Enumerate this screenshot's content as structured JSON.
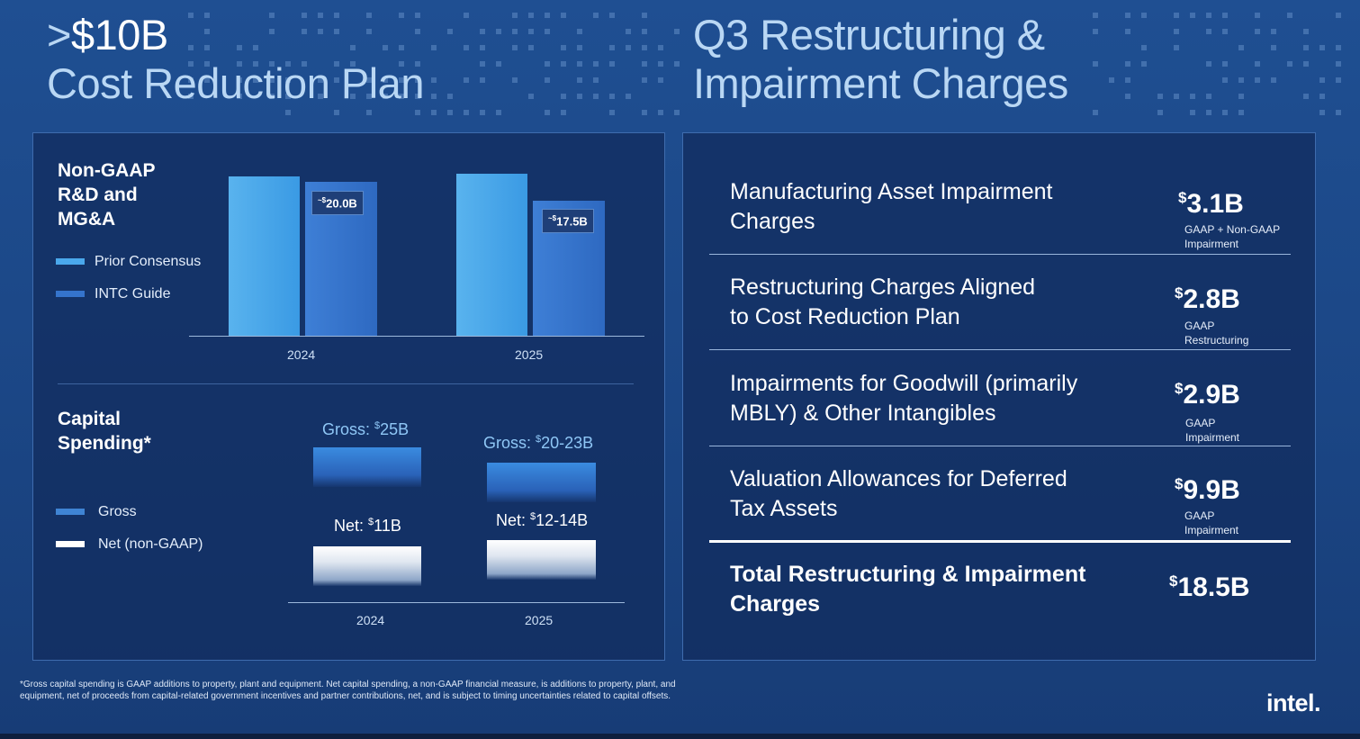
{
  "left_title": {
    "line1_prefix": ">",
    "line1_amount": "$10B",
    "line2": "Cost Reduction Plan"
  },
  "right_title": {
    "line1": "Q3 Restructuring &",
    "line2": "Impairment Charges"
  },
  "opex": {
    "title_lines": [
      "Non-GAAP",
      "R&D and",
      "MG&A"
    ],
    "legend": [
      {
        "label": "Prior Consensus",
        "color": "#4aa8ec"
      },
      {
        "label": "INTC Guide",
        "color": "#3574cc"
      }
    ],
    "chart_data": {
      "type": "bar",
      "categories": [
        "2024",
        "2025"
      ],
      "series": [
        {
          "name": "Prior Consensus",
          "values": [
            22.0,
            22.3
          ]
        },
        {
          "name": "INTC Guide",
          "values": [
            20.0,
            17.5
          ]
        }
      ],
      "data_labels": [
        {
          "prefix": "~",
          "currency": "$",
          "value": "20.0B"
        },
        {
          "prefix": "~",
          "currency": "$",
          "value": "17.5B"
        }
      ],
      "ylim": [
        0,
        24
      ]
    }
  },
  "capex": {
    "title_lines": [
      "Capital",
      "Spending*"
    ],
    "legend": [
      {
        "label": "Gross",
        "color": "#3f84d4"
      },
      {
        "label": "Net (non-GAAP)",
        "color": "#ffffff"
      }
    ],
    "chart_data": {
      "type": "bar",
      "categories": [
        "2024",
        "2025"
      ],
      "gross_labels": [
        {
          "text": "Gross: ",
          "currency": "$",
          "value": "25B"
        },
        {
          "text": "Gross: ",
          "currency": "$",
          "value": "20-23B"
        }
      ],
      "net_labels": [
        {
          "text": "Net: ",
          "currency": "$",
          "value": "11B"
        },
        {
          "text": "Net: ",
          "currency": "$",
          "value": "12-14B"
        }
      ]
    }
  },
  "charges": [
    {
      "lines": [
        "Manufacturing Asset Impairment",
        "Charges"
      ],
      "currency": "$",
      "amount": "3.1B",
      "sub": [
        "GAAP + Non-GAAP",
        "Impairment"
      ]
    },
    {
      "lines": [
        "Restructuring Charges Aligned",
        "to Cost Reduction Plan"
      ],
      "currency": "$",
      "amount": "2.8B",
      "sub": [
        "GAAP",
        "Restructuring"
      ]
    },
    {
      "lines": [
        "Impairments for Goodwill (primarily",
        "MBLY) & Other Intangibles"
      ],
      "currency": "$",
      "amount": "2.9B",
      "sub": [
        "GAAP",
        "Impairment"
      ]
    },
    {
      "lines": [
        "Valuation Allowances for Deferred",
        "Tax Assets"
      ],
      "currency": "$",
      "amount": "9.9B",
      "sub": [
        "GAAP",
        "Impairment"
      ]
    }
  ],
  "total": {
    "lines": [
      "Total Restructuring & Impairment",
      "Charges"
    ],
    "currency": "$",
    "amount": "18.5B"
  },
  "footnote": {
    "line1": "*Gross capital spending is GAAP additions to property, plant and equipment. Net capital spending, a non-GAAP financial measure, is additions to property, plant, and",
    "line2": "equipment, net of proceeds from capital-related government incentives and partner contributions, net, and is subject to timing uncertainties related to capital offsets."
  },
  "logo": "intel."
}
